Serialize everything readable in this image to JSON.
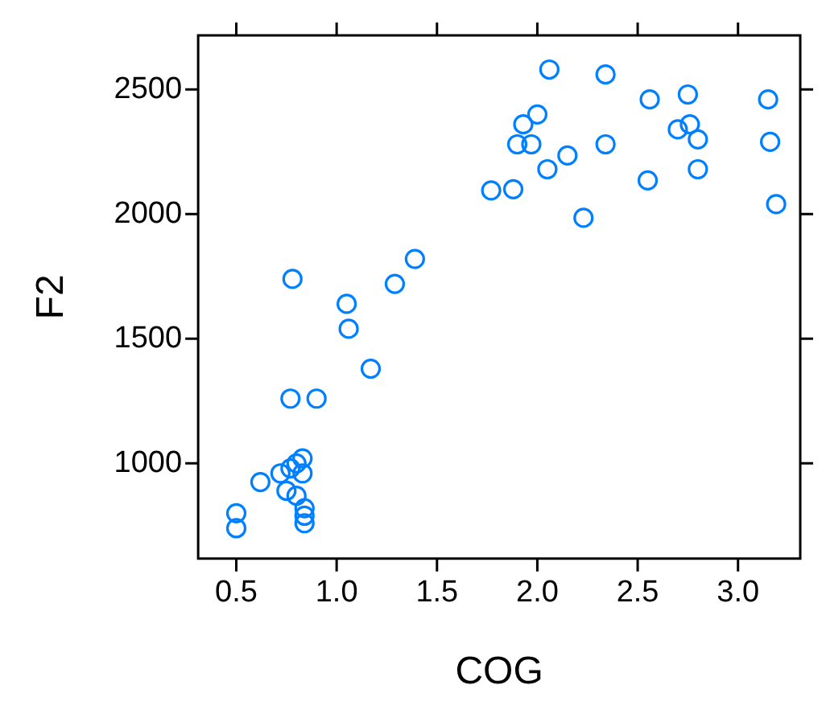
{
  "chart_data": {
    "type": "scatter",
    "xlabel": "COG",
    "ylabel": "F2",
    "marker": "circle",
    "grid": false,
    "legend": false,
    "xlim": [
      0.31,
      3.31
    ],
    "ylim": [
      618,
      2717
    ],
    "xticks": [
      0.5,
      {
        "value": 1,
        "label": "1.0"
      },
      1.5,
      {
        "value": 2,
        "label": "2.0"
      },
      2.5,
      {
        "value": 3,
        "label": "3.0"
      }
    ],
    "yticks": [
      1000,
      1500,
      2000,
      2500
    ],
    "series": [
      {
        "color": "#0080ff",
        "x": [
          0.5,
          0.5,
          0.62,
          0.72,
          0.75,
          0.77,
          0.77,
          0.8,
          0.83,
          0.8,
          0.83,
          0.84,
          0.84,
          0.84,
          0.78,
          0.9,
          1.05,
          1.06,
          1.17,
          1.29,
          1.39,
          1.77,
          1.88,
          1.9,
          1.93,
          1.97,
          2.0,
          2.05,
          2.06,
          2.15,
          2.23,
          2.34,
          2.34,
          2.55,
          2.56,
          2.7,
          2.75,
          2.76,
          2.8,
          2.8,
          3.15,
          3.16,
          3.19
        ],
        "values": [
          800,
          740,
          925,
          960,
          890,
          1260,
          980,
          1000,
          1020,
          870,
          960,
          820,
          790,
          760,
          1740,
          1260,
          1640,
          1540,
          1380,
          1720,
          1820,
          2095,
          2100,
          2280,
          2360,
          2280,
          2400,
          2180,
          2580,
          2235,
          1985,
          2560,
          2280,
          2135,
          2460,
          2340,
          2480,
          2360,
          2300,
          2180,
          2460,
          2290,
          2040
        ]
      }
    ]
  }
}
